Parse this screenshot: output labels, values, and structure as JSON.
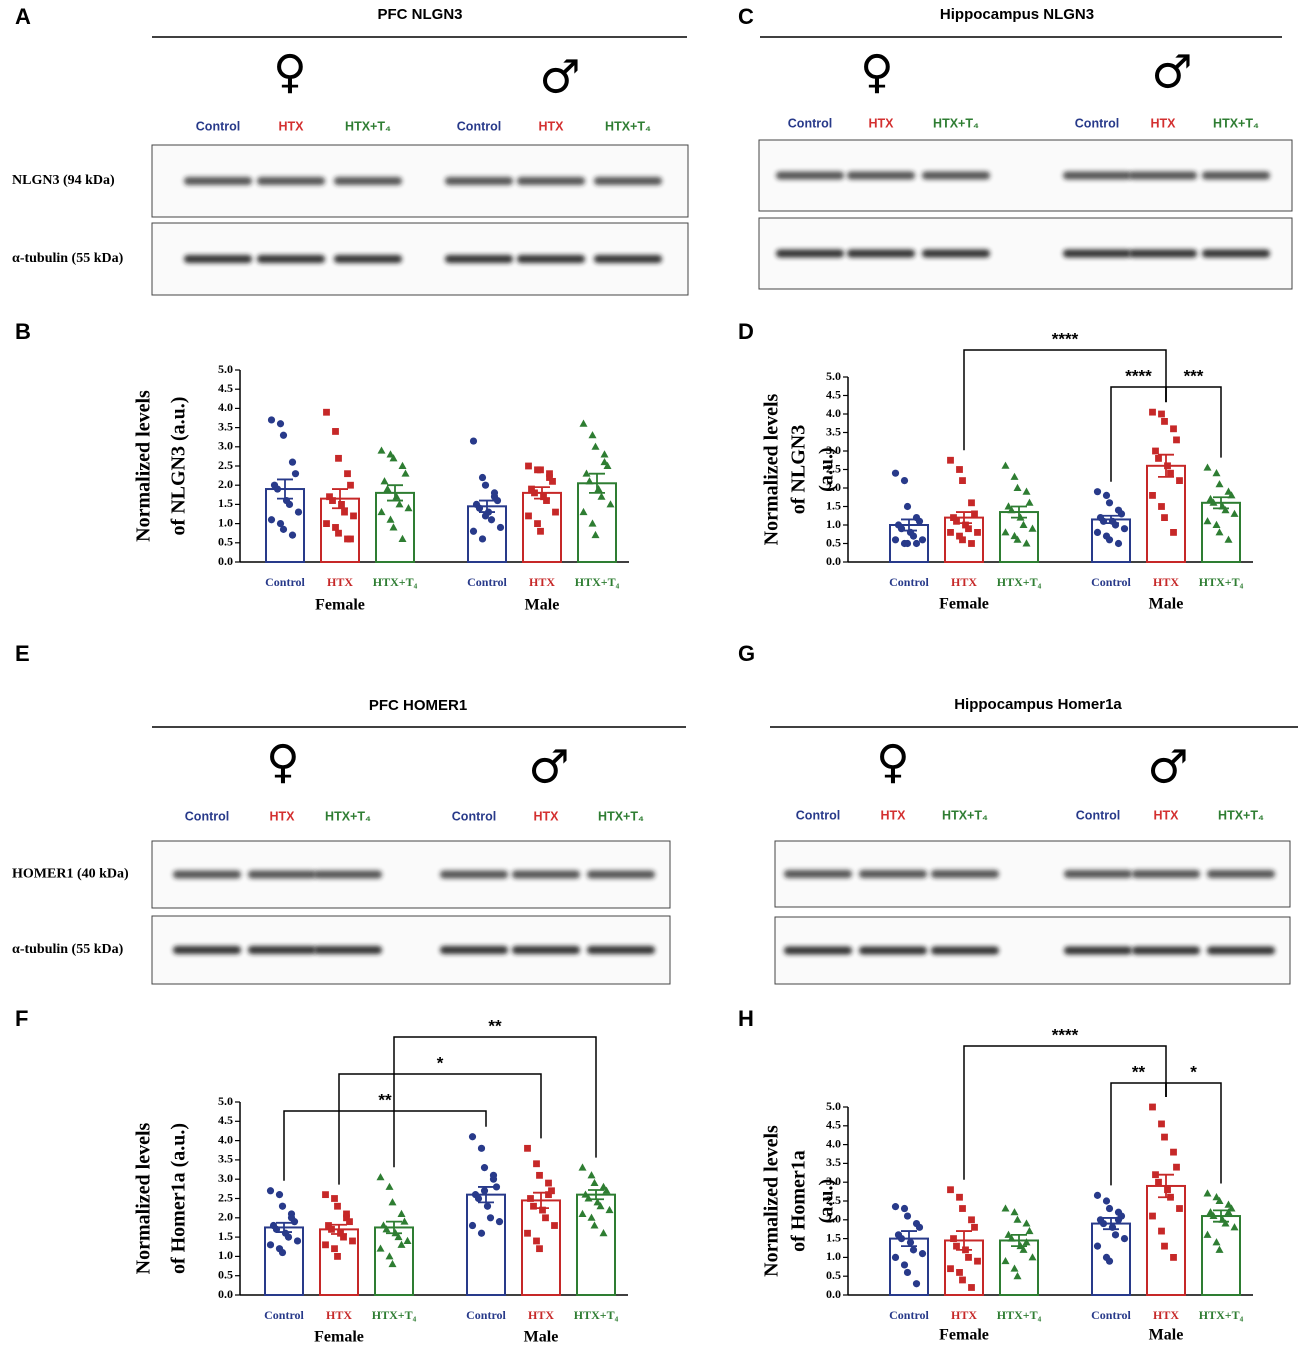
{
  "blots": [
    {
      "panel": "A",
      "title": "PFC NLGN3",
      "female": "♀",
      "male": "♂",
      "lanes": [
        "Control",
        "HTX",
        "HTX+T₄",
        "Control",
        "HTX",
        "HTX+T₄"
      ],
      "lane_colors": [
        "#283a8a",
        "#d32f2f",
        "#2e7d32",
        "#283a8a",
        "#d32f2f",
        "#2e7d32"
      ],
      "rows": [
        "NLGN3 (94 kDa)",
        "α-tubulin (55 kDa)"
      ]
    },
    {
      "panel": "C",
      "title": "Hippocampus NLGN3",
      "female": "♀",
      "male": "♂",
      "lanes": [
        "Control",
        "HTX",
        "HTX+T₄",
        "Control",
        "HTX",
        "HTX+T₄"
      ],
      "lane_colors": [
        "#283a8a",
        "#d32f2f",
        "#2e7d32",
        "#283a8a",
        "#d32f2f",
        "#2e7d32"
      ]
    },
    {
      "panel": "E",
      "title": "PFC HOMER1",
      "female": "♀",
      "male": "♂",
      "lanes": [
        "Control",
        "HTX",
        "HTX+T₄",
        "Control",
        "HTX",
        "HTX+T₄"
      ],
      "lane_colors": [
        "#283a8a",
        "#d32f2f",
        "#2e7d32",
        "#283a8a",
        "#d32f2f",
        "#2e7d32"
      ],
      "rows": [
        "HOMER1 (40 kDa)",
        "α-tubulin (55 kDa)"
      ]
    },
    {
      "panel": "G",
      "title": "Hippocampus Homer1a",
      "female": "♀",
      "male": "♂",
      "lanes": [
        "Control",
        "HTX",
        "HTX+T₄",
        "Control",
        "HTX",
        "HTX+T₄"
      ],
      "lane_colors": [
        "#283a8a",
        "#d32f2f",
        "#2e7d32",
        "#283a8a",
        "#d32f2f",
        "#2e7d32"
      ]
    }
  ],
  "chart_data": [
    {
      "type": "bar",
      "panel": "B",
      "ylabel": [
        "Normalized levels",
        "of NLGN3 (a.u.)"
      ],
      "categories": [
        "Control",
        "HTX",
        "HTX+T₄",
        "Control",
        "HTX",
        "HTX+T₄"
      ],
      "groups": [
        "Female",
        "Male"
      ],
      "colors": [
        "#283a8a",
        "#c62828",
        "#2e7d32",
        "#283a8a",
        "#c62828",
        "#2e7d32"
      ],
      "markers": [
        "circle",
        "square",
        "triangle",
        "circle",
        "square",
        "triangle"
      ],
      "values": [
        1.9,
        1.65,
        1.8,
        1.45,
        1.8,
        2.05
      ],
      "errors": [
        0.25,
        0.25,
        0.2,
        0.15,
        0.15,
        0.25
      ],
      "points": [
        [
          3.7,
          3.6,
          3.3,
          2.6,
          2.3,
          2.0,
          1.9,
          1.6,
          1.5,
          1.3,
          1.1,
          1.0,
          0.85,
          0.7
        ],
        [
          3.9,
          3.4,
          2.7,
          2.3,
          2.0,
          1.7,
          1.6,
          1.5,
          1.3,
          1.2,
          1.0,
          0.9,
          0.75,
          0.6,
          0.6
        ],
        [
          2.9,
          2.8,
          2.7,
          2.5,
          2.3,
          2.1,
          1.9,
          1.7,
          1.5,
          1.4,
          1.3,
          1.1,
          0.9,
          0.6
        ],
        [
          3.15,
          2.2,
          2.0,
          1.8,
          1.6,
          1.5,
          1.4,
          1.3,
          1.1,
          0.9,
          0.8,
          0.6,
          1.2,
          1.7
        ],
        [
          2.5,
          2.4,
          2.4,
          2.3,
          2.1,
          1.9,
          1.8,
          1.7,
          1.6,
          1.3,
          1.2,
          1.0,
          0.8,
          2.2
        ],
        [
          3.6,
          3.3,
          3.0,
          2.8,
          2.5,
          2.3,
          2.1,
          1.9,
          1.7,
          1.5,
          1.3,
          1.0,
          0.7,
          2.6
        ]
      ],
      "comparisons": [],
      "ylim": [
        0,
        5
      ],
      "yticks": [
        {
          "value": 0,
          "label": "0.0"
        },
        {
          "value": 0.5,
          "label": "0.5"
        },
        {
          "value": 1,
          "label": "1.0"
        },
        {
          "value": 1.5,
          "label": "1.5"
        },
        {
          "value": 2,
          "label": "2.0"
        },
        {
          "value": 2.5,
          "label": "2.5"
        },
        {
          "value": 3,
          "label": "3.0"
        },
        {
          "value": 3.5,
          "label": "3.5"
        },
        {
          "value": 4,
          "label": "4.0"
        },
        {
          "value": 4.5,
          "label": "4.5"
        },
        {
          "value": 5,
          "label": "5.0"
        }
      ]
    },
    {
      "type": "bar",
      "panel": "D",
      "ylabel": [
        "Normalized levels",
        "of NLGN3",
        "(a.u.)"
      ],
      "categories": [
        "Control",
        "HTX",
        "HTX+T₄",
        "Control",
        "HTX",
        "HTX+T₄"
      ],
      "groups": [
        "Female",
        "Male"
      ],
      "colors": [
        "#283a8a",
        "#c62828",
        "#2e7d32",
        "#283a8a",
        "#c62828",
        "#2e7d32"
      ],
      "markers": [
        "circle",
        "square",
        "triangle",
        "circle",
        "square",
        "triangle"
      ],
      "values": [
        1.0,
        1.2,
        1.35,
        1.15,
        2.6,
        1.6
      ],
      "errors": [
        0.15,
        0.15,
        0.15,
        0.1,
        0.3,
        0.15
      ],
      "points": [
        [
          2.4,
          2.2,
          1.5,
          1.2,
          1.1,
          1.0,
          0.9,
          0.8,
          0.7,
          0.6,
          0.6,
          0.5,
          0.5,
          0.5
        ],
        [
          2.75,
          2.5,
          2.2,
          1.6,
          1.3,
          1.2,
          1.1,
          1.0,
          0.9,
          0.8,
          0.8,
          0.7,
          0.6,
          0.5
        ],
        [
          2.6,
          2.3,
          2.0,
          1.9,
          1.6,
          1.5,
          1.4,
          1.2,
          1.0,
          0.9,
          0.8,
          0.7,
          0.6,
          0.5
        ],
        [
          1.9,
          1.8,
          1.6,
          1.4,
          1.3,
          1.2,
          1.1,
          1.1,
          1.0,
          0.9,
          0.8,
          0.7,
          0.6,
          0.5
        ],
        [
          4.05,
          4.0,
          3.8,
          3.6,
          3.3,
          3.0,
          2.8,
          2.6,
          2.4,
          2.2,
          1.8,
          1.5,
          1.2,
          0.8
        ],
        [
          2.55,
          2.4,
          2.1,
          1.9,
          1.8,
          1.7,
          1.6,
          1.5,
          1.4,
          1.3,
          1.1,
          1.0,
          0.8,
          0.6
        ]
      ],
      "comparisons": [
        {
          "between": [
            3,
            4
          ],
          "label": "****"
        },
        {
          "between": [
            4,
            5
          ],
          "label": "***"
        },
        {
          "between": [
            1,
            4
          ],
          "label": "****"
        }
      ],
      "ylim": [
        0,
        5
      ],
      "yticks": [
        {
          "value": 0,
          "label": "0.0"
        },
        {
          "value": 0.5,
          "label": "0.5"
        },
        {
          "value": 1,
          "label": "1.0"
        },
        {
          "value": 1.5,
          "label": "1.5"
        },
        {
          "value": 2,
          "label": "2.0"
        },
        {
          "value": 2.5,
          "label": "2.5"
        },
        {
          "value": 3,
          "label": "3.0"
        },
        {
          "value": 3.5,
          "label": "3.5"
        },
        {
          "value": 4,
          "label": "4.0"
        },
        {
          "value": 4.5,
          "label": "4.5"
        },
        {
          "value": 5,
          "label": "5.0"
        }
      ]
    },
    {
      "type": "bar",
      "panel": "F",
      "ylabel": [
        "Normalized levels",
        "of Homer1a (a.u.)"
      ],
      "categories": [
        "Control",
        "HTX",
        "HTX+T₄",
        "Control",
        "HTX",
        "HTX+T₄"
      ],
      "groups": [
        "Female",
        "Male"
      ],
      "colors": [
        "#283a8a",
        "#c62828",
        "#2e7d32",
        "#283a8a",
        "#c62828",
        "#2e7d32"
      ],
      "markers": [
        "circle",
        "square",
        "triangle",
        "circle",
        "square",
        "triangle"
      ],
      "values": [
        1.75,
        1.7,
        1.75,
        2.6,
        2.45,
        2.6
      ],
      "errors": [
        0.12,
        0.12,
        0.15,
        0.2,
        0.2,
        0.12
      ],
      "points": [
        [
          2.7,
          2.6,
          2.3,
          2.1,
          1.9,
          1.8,
          1.7,
          1.6,
          1.5,
          1.4,
          1.3,
          1.2,
          1.1,
          2.0
        ],
        [
          2.6,
          2.5,
          2.3,
          2.1,
          1.9,
          1.8,
          1.7,
          1.6,
          1.5,
          1.4,
          1.3,
          1.2,
          1.0,
          2.0
        ],
        [
          3.05,
          2.8,
          2.4,
          2.1,
          1.9,
          1.8,
          1.7,
          1.6,
          1.5,
          1.4,
          1.2,
          1.0,
          0.8,
          1.3
        ],
        [
          4.1,
          3.8,
          3.3,
          3.1,
          2.8,
          2.6,
          2.5,
          2.3,
          2.0,
          1.9,
          1.8,
          1.6,
          2.7,
          3.0
        ],
        [
          3.8,
          3.4,
          3.1,
          2.9,
          2.7,
          2.5,
          2.3,
          2.2,
          2.0,
          1.8,
          1.6,
          1.4,
          1.2,
          2.6
        ],
        [
          3.3,
          3.1,
          2.9,
          2.8,
          2.7,
          2.6,
          2.5,
          2.4,
          2.3,
          2.2,
          2.1,
          2.0,
          1.8,
          1.6
        ]
      ],
      "comparisons": [
        {
          "between": [
            0,
            3
          ],
          "label": "**"
        },
        {
          "between": [
            1,
            4
          ],
          "label": "*"
        },
        {
          "between": [
            2,
            5
          ],
          "label": "**"
        }
      ],
      "ylim": [
        0,
        5
      ],
      "yticks": [
        {
          "value": 0,
          "label": "0.0"
        },
        {
          "value": 0.5,
          "label": "0.5"
        },
        {
          "value": 1,
          "label": "1.0"
        },
        {
          "value": 1.5,
          "label": "1.5"
        },
        {
          "value": 2,
          "label": "2.0"
        },
        {
          "value": 2.5,
          "label": "2.5"
        },
        {
          "value": 3,
          "label": "3.0"
        },
        {
          "value": 3.5,
          "label": "3.5"
        },
        {
          "value": 4,
          "label": "4.0"
        },
        {
          "value": 4.5,
          "label": "4.5"
        },
        {
          "value": 5,
          "label": "5.0"
        }
      ]
    },
    {
      "type": "bar",
      "panel": "H",
      "ylabel": [
        "Normalized levels",
        "of Homer1a",
        "(a.u.)"
      ],
      "categories": [
        "Control",
        "HTX",
        "HTX+T₄",
        "Control",
        "HTX",
        "HTX+T₄"
      ],
      "groups": [
        "Female",
        "Male"
      ],
      "colors": [
        "#283a8a",
        "#c62828",
        "#2e7d32",
        "#283a8a",
        "#c62828",
        "#2e7d32"
      ],
      "markers": [
        "circle",
        "square",
        "triangle",
        "circle",
        "square",
        "triangle"
      ],
      "values": [
        1.5,
        1.45,
        1.45,
        1.9,
        2.9,
        2.1
      ],
      "errors": [
        0.2,
        0.25,
        0.15,
        0.15,
        0.3,
        0.15
      ],
      "points": [
        [
          2.35,
          2.3,
          2.1,
          1.9,
          1.8,
          1.6,
          1.5,
          1.4,
          1.2,
          1.1,
          1.0,
          0.8,
          0.6,
          0.3
        ],
        [
          2.8,
          2.6,
          2.3,
          2.0,
          1.8,
          1.5,
          1.3,
          1.2,
          1.0,
          0.9,
          0.7,
          0.6,
          0.4,
          0.2
        ],
        [
          2.3,
          2.2,
          2.0,
          1.9,
          1.7,
          1.6,
          1.5,
          1.3,
          1.2,
          1.0,
          0.9,
          0.7,
          0.5,
          1.4
        ],
        [
          2.65,
          2.5,
          2.3,
          2.2,
          2.1,
          2.0,
          1.9,
          1.8,
          1.6,
          1.5,
          1.3,
          1.0,
          0.9,
          2.0
        ],
        [
          5.0,
          4.55,
          4.2,
          3.8,
          3.4,
          3.2,
          3.0,
          2.8,
          2.6,
          2.3,
          2.1,
          1.7,
          1.3,
          1.0
        ],
        [
          2.7,
          2.6,
          2.5,
          2.4,
          2.3,
          2.2,
          2.1,
          2.0,
          1.9,
          1.8,
          1.6,
          1.4,
          1.2,
          2.2
        ]
      ],
      "comparisons": [
        {
          "between": [
            3,
            4
          ],
          "label": "**"
        },
        {
          "between": [
            4,
            5
          ],
          "label": "*"
        },
        {
          "between": [
            1,
            4
          ],
          "label": "****"
        }
      ],
      "ylim": [
        0,
        5
      ],
      "yticks": [
        {
          "value": 0,
          "label": "0.0"
        },
        {
          "value": 0.5,
          "label": "0.5"
        },
        {
          "value": 1,
          "label": "1.0"
        },
        {
          "value": 1.5,
          "label": "1.5"
        },
        {
          "value": 2,
          "label": "2.0"
        },
        {
          "value": 2.5,
          "label": "2.5"
        },
        {
          "value": 3,
          "label": "3.0"
        },
        {
          "value": 3.5,
          "label": "3.5"
        },
        {
          "value": 4,
          "label": "4.0"
        },
        {
          "value": 4.5,
          "label": "4.5"
        },
        {
          "value": 5,
          "label": "5.0"
        }
      ]
    }
  ]
}
